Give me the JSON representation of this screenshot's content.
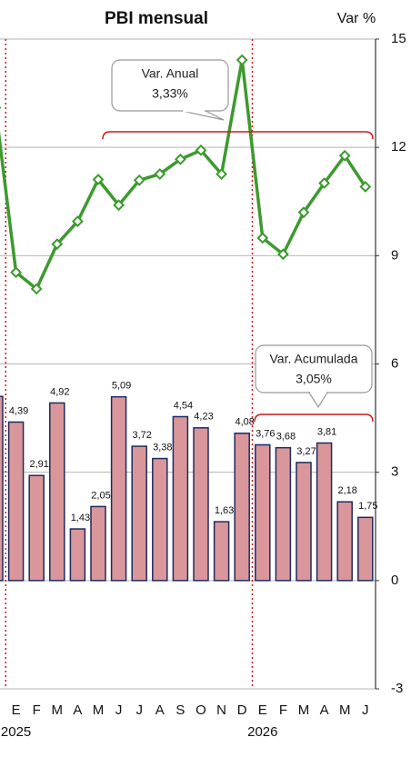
{
  "chart_data": {
    "type": "bar_line",
    "title": "PBI mensual",
    "y_axis_label": "Var %",
    "categories": [
      null,
      "E",
      "F",
      "M",
      "A",
      "M",
      "J",
      "J",
      "A",
      "S",
      "O",
      "N",
      "D",
      "E",
      "F",
      "M",
      "A",
      "M",
      "J"
    ],
    "year_labels": [
      "2025",
      "2026"
    ],
    "series": [
      {
        "type": "bar",
        "color": "#d9979b",
        "edge_color": "#1f2a5c",
        "values": [
          5.1,
          4.39,
          2.91,
          4.92,
          1.43,
          2.05,
          5.09,
          3.72,
          3.38,
          4.54,
          4.23,
          1.63,
          4.08,
          3.76,
          3.68,
          3.27,
          3.81,
          2.18,
          1.75
        ],
        "value_labels": [
          null,
          "4,39",
          "2,91",
          "4,92",
          "1,43",
          "2,05",
          "5,09",
          "3,72",
          "3,38",
          "4,54",
          "4,23",
          "1,63",
          "4,08",
          "3,76",
          "3,68",
          "3,27",
          "3,81",
          "2,18",
          "1,75"
        ]
      },
      {
        "type": "line",
        "color": "#3d9a2f",
        "values": [
          13.1,
          8.54,
          8.08,
          9.32,
          9.95,
          11.11,
          10.4,
          11.09,
          11.26,
          11.67,
          11.92,
          11.26,
          14.42,
          9.49,
          9.04,
          10.2,
          11.01,
          11.77,
          10.91
        ]
      }
    ],
    "annotations": [
      {
        "lines": [
          "Var. Anual",
          "3,33%"
        ]
      },
      {
        "lines": [
          "Var. Acumulada",
          "3,05%"
        ]
      }
    ],
    "ylim": [
      -3,
      15
    ],
    "yticks": [
      -3,
      0,
      3,
      6,
      9,
      12,
      15
    ],
    "grid": true
  }
}
